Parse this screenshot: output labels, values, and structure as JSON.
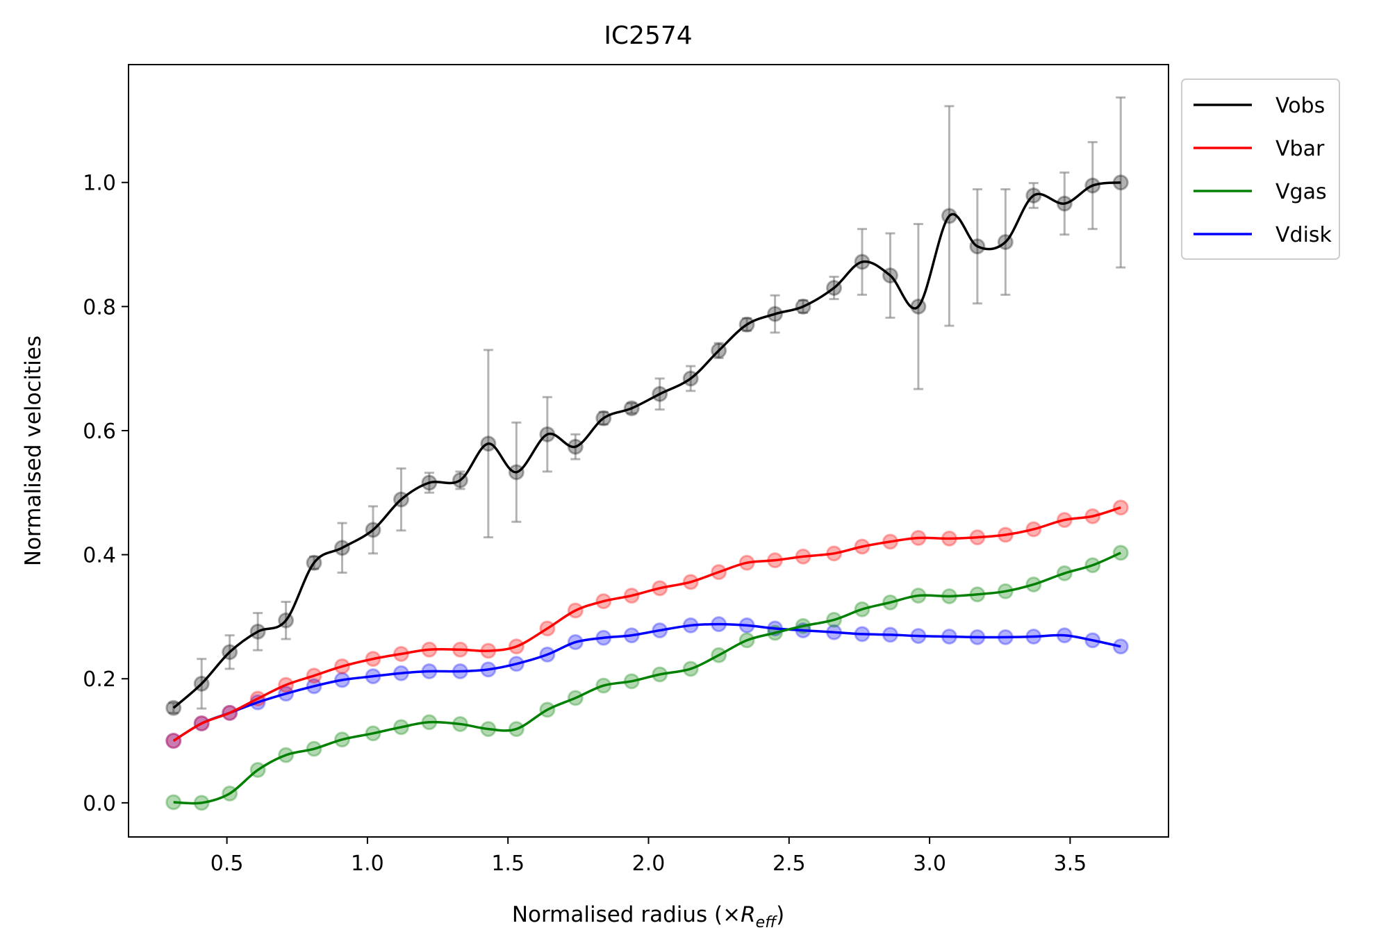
{
  "chart_data": {
    "type": "line",
    "title": "IC2574",
    "xlabel": "Normalised radius (×",
    "xlabel_symbol": "R",
    "xlabel_subscript": "eff",
    "xlabel_suffix": ")",
    "ylabel": "Normalised velocities",
    "xlim": [
      0.15,
      3.85
    ],
    "ylim": [
      -0.055,
      1.19
    ],
    "xticks": [
      0.5,
      1.0,
      1.5,
      2.0,
      2.5,
      3.0,
      3.5
    ],
    "xtick_labels": [
      "0.5",
      "1.0",
      "1.5",
      "2.0",
      "2.5",
      "3.0",
      "3.5"
    ],
    "yticks": [
      0.0,
      0.2,
      0.4,
      0.6,
      0.8,
      1.0
    ],
    "ytick_labels": [
      "0.0",
      "0.2",
      "0.4",
      "0.6",
      "0.8",
      "1.0"
    ],
    "legend_position": "outside-top-right",
    "x": [
      0.31,
      0.41,
      0.51,
      0.61,
      0.71,
      0.81,
      0.91,
      1.02,
      1.12,
      1.22,
      1.33,
      1.43,
      1.53,
      1.64,
      1.74,
      1.84,
      1.94,
      2.04,
      2.15,
      2.25,
      2.35,
      2.45,
      2.55,
      2.66,
      2.76,
      2.86,
      2.96,
      3.07,
      3.17,
      3.27,
      3.37,
      3.48,
      3.58,
      3.68
    ],
    "series": [
      {
        "name": "Vobs",
        "color": "#000000",
        "values": [
          0.153,
          0.192,
          0.243,
          0.276,
          0.294,
          0.387,
          0.411,
          0.44,
          0.489,
          0.516,
          0.52,
          0.579,
          0.533,
          0.594,
          0.574,
          0.62,
          0.636,
          0.659,
          0.684,
          0.729,
          0.771,
          0.788,
          0.8,
          0.83,
          0.872,
          0.85,
          0.8,
          0.946,
          0.897,
          0.904,
          0.979,
          0.966,
          0.995,
          1.0
        ],
        "errors": [
          0.008,
          0.04,
          0.027,
          0.03,
          0.03,
          0.01,
          0.04,
          0.038,
          0.05,
          0.016,
          0.014,
          0.151,
          0.08,
          0.06,
          0.02,
          0.01,
          0.008,
          0.025,
          0.02,
          0.012,
          0.01,
          0.03,
          0.01,
          0.018,
          0.053,
          0.068,
          0.133,
          0.177,
          0.092,
          0.085,
          0.02,
          0.05,
          0.07,
          0.137
        ]
      },
      {
        "name": "Vbar",
        "color": "#ff0000",
        "values": [
          0.1,
          0.128,
          0.145,
          0.168,
          0.19,
          0.205,
          0.22,
          0.232,
          0.24,
          0.247,
          0.247,
          0.245,
          0.252,
          0.281,
          0.31,
          0.325,
          0.334,
          0.346,
          0.356,
          0.372,
          0.387,
          0.391,
          0.397,
          0.402,
          0.413,
          0.421,
          0.427,
          0.426,
          0.428,
          0.432,
          0.441,
          0.456,
          0.462,
          0.476
        ]
      },
      {
        "name": "Vgas",
        "color": "#008000",
        "values": [
          0.001,
          0.0,
          0.015,
          0.053,
          0.077,
          0.087,
          0.102,
          0.112,
          0.122,
          0.13,
          0.127,
          0.119,
          0.119,
          0.15,
          0.169,
          0.189,
          0.196,
          0.207,
          0.216,
          0.238,
          0.262,
          0.274,
          0.285,
          0.295,
          0.312,
          0.323,
          0.334,
          0.333,
          0.336,
          0.341,
          0.352,
          0.37,
          0.383,
          0.403
        ]
      },
      {
        "name": "Vdisk",
        "color": "#0000ff",
        "values": [
          0.1,
          0.128,
          0.145,
          0.162,
          0.176,
          0.188,
          0.198,
          0.204,
          0.209,
          0.212,
          0.212,
          0.215,
          0.224,
          0.239,
          0.259,
          0.266,
          0.27,
          0.278,
          0.286,
          0.288,
          0.286,
          0.281,
          0.278,
          0.275,
          0.272,
          0.271,
          0.269,
          0.268,
          0.267,
          0.267,
          0.268,
          0.27,
          0.262,
          0.252
        ]
      }
    ]
  }
}
